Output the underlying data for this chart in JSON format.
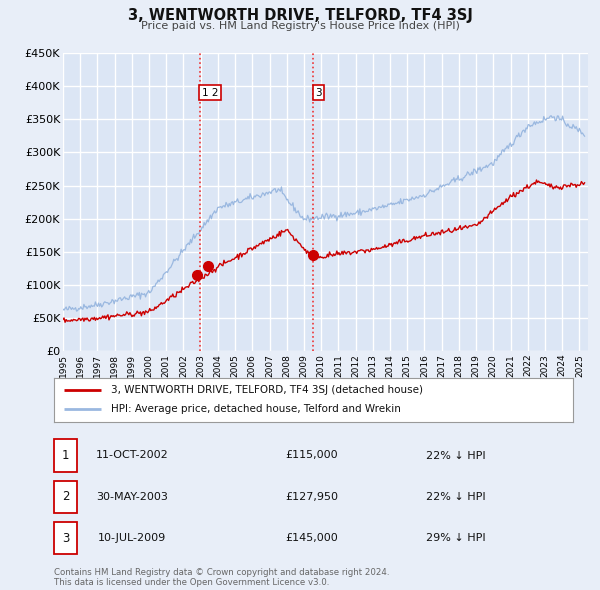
{
  "title": "3, WENTWORTH DRIVE, TELFORD, TF4 3SJ",
  "subtitle": "Price paid vs. HM Land Registry's House Price Index (HPI)",
  "ylim": [
    0,
    450000
  ],
  "xlim_start": 1995.0,
  "xlim_end": 2025.5,
  "background_color": "#e8eef8",
  "plot_bg_color": "#dce6f5",
  "grid_color": "#ffffff",
  "hpi_color": "#9ab8e0",
  "price_color": "#cc0000",
  "sale_marker_color": "#cc0000",
  "sale_marker_size": 7,
  "transactions": [
    {
      "label": "1",
      "date_str": "11-OCT-2002",
      "date_num": 2002.78,
      "price": 115000,
      "note": "22% ↓ HPI"
    },
    {
      "label": "2",
      "date_str": "30-MAY-2003",
      "date_num": 2003.41,
      "price": 127950,
      "note": "22% ↓ HPI"
    },
    {
      "label": "3",
      "date_str": "10-JUL-2009",
      "date_num": 2009.52,
      "price": 145000,
      "note": "29% ↓ HPI"
    }
  ],
  "vline_color": "#ee3333",
  "vline_x1": 2002.95,
  "vline_x2": 2009.52,
  "footer_text": "Contains HM Land Registry data © Crown copyright and database right 2024.\nThis data is licensed under the Open Government Licence v3.0.",
  "legend_line1": "3, WENTWORTH DRIVE, TELFORD, TF4 3SJ (detached house)",
  "legend_line2": "HPI: Average price, detached house, Telford and Wrekin",
  "ytick_labels": [
    "£0",
    "£50K",
    "£100K",
    "£150K",
    "£200K",
    "£250K",
    "£300K",
    "£350K",
    "£400K",
    "£450K"
  ],
  "ytick_values": [
    0,
    50000,
    100000,
    150000,
    200000,
    250000,
    300000,
    350000,
    400000,
    450000
  ]
}
